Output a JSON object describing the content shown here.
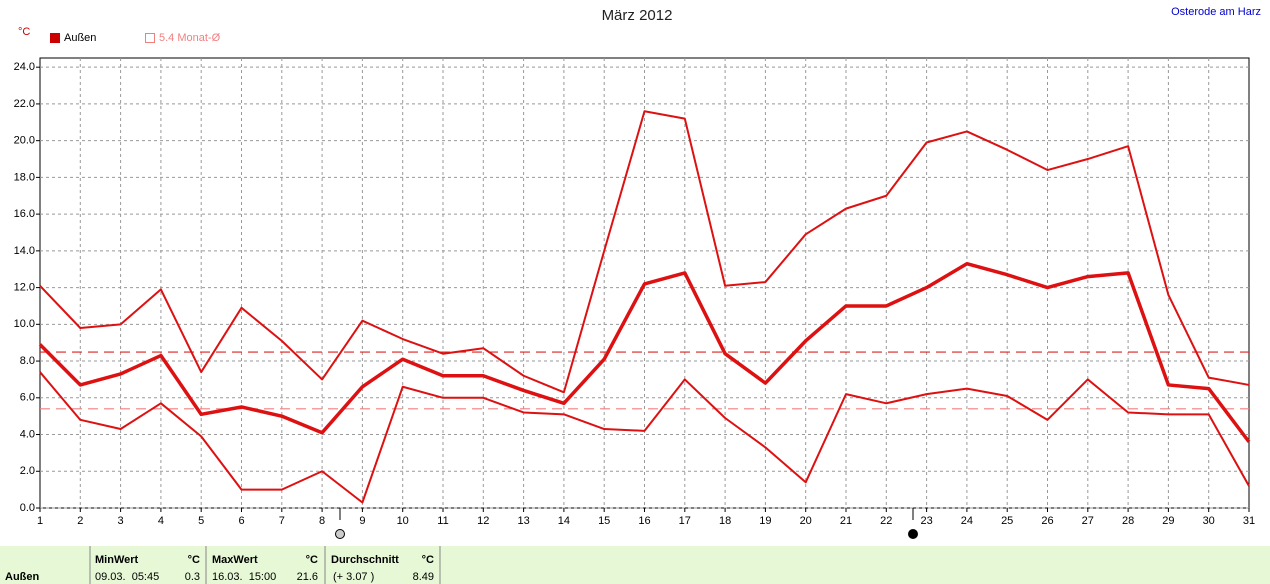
{
  "chart_data": {
    "type": "line",
    "title": "März 2012",
    "location": "Osterode am Harz",
    "y_unit": "°C",
    "legend": {
      "label": "Außen",
      "color": "#cc0000"
    },
    "x": [
      1,
      2,
      3,
      4,
      5,
      6,
      7,
      8,
      9,
      10,
      11,
      12,
      13,
      14,
      15,
      16,
      17,
      18,
      19,
      20,
      21,
      22,
      23,
      24,
      25,
      26,
      27,
      28,
      29,
      30,
      31
    ],
    "xlim": [
      1,
      31
    ],
    "xticks": [
      1,
      2,
      3,
      4,
      5,
      6,
      7,
      8,
      9,
      10,
      11,
      12,
      13,
      14,
      15,
      16,
      17,
      18,
      19,
      20,
      21,
      22,
      23,
      24,
      25,
      26,
      27,
      28,
      29,
      30,
      31
    ],
    "ylim": [
      0,
      24.5
    ],
    "yticks": [
      {
        "value": 0,
        "label": "0.0"
      },
      {
        "value": 2,
        "label": "2.0"
      },
      {
        "value": 4,
        "label": "4.0"
      },
      {
        "value": 6,
        "label": "6.0"
      },
      {
        "value": 8,
        "label": "8.0"
      },
      {
        "value": 10,
        "label": "10.0"
      },
      {
        "value": 12,
        "label": "12.0"
      },
      {
        "value": 14,
        "label": "14.0"
      },
      {
        "value": 16,
        "label": "16.0"
      },
      {
        "value": 18,
        "label": "18.0"
      },
      {
        "value": 20,
        "label": "20.0"
      },
      {
        "value": 22,
        "label": "22.0"
      },
      {
        "value": 24,
        "label": "24.0"
      }
    ],
    "grid": true,
    "series": [
      {
        "color": "#dd1111",
        "width": 2,
        "values": [
          12.1,
          9.8,
          10.0,
          11.9,
          7.4,
          10.9,
          9.1,
          7.0,
          10.2,
          9.2,
          8.4,
          8.7,
          7.2,
          6.3,
          14.0,
          21.6,
          21.2,
          12.1,
          12.3,
          14.9,
          16.3,
          17.0,
          19.9,
          20.5,
          19.5,
          18.4,
          19.0,
          19.7,
          11.6,
          7.1,
          6.7
        ]
      },
      {
        "color": "#dd1111",
        "width": 3.5,
        "values": [
          8.9,
          6.7,
          7.3,
          8.3,
          5.1,
          5.5,
          5.0,
          4.1,
          6.6,
          8.1,
          7.2,
          7.2,
          6.4,
          5.7,
          8.1,
          12.2,
          12.8,
          8.4,
          6.8,
          9.1,
          11.0,
          11.0,
          12.0,
          13.3,
          12.7,
          12.0,
          12.6,
          12.8,
          6.7,
          6.5,
          3.6
        ]
      },
      {
        "color": "#dd1111",
        "width": 2,
        "values": [
          7.4,
          4.8,
          4.3,
          5.7,
          3.9,
          1.0,
          1.0,
          2.0,
          0.3,
          6.6,
          6.0,
          6.0,
          5.2,
          5.1,
          4.3,
          4.2,
          7.0,
          4.9,
          3.3,
          1.4,
          6.2,
          5.7,
          6.2,
          6.5,
          6.1,
          4.8,
          7.0,
          5.2,
          5.1,
          5.1,
          1.2
        ]
      }
    ],
    "reference_lines": [
      {
        "value": 8.49,
        "color": "#dd2222"
      },
      {
        "value": 5.4,
        "color": "#f08080",
        "label": "5.4 Monat-Ø"
      }
    ]
  },
  "table": {
    "row_label": "Außen",
    "columns": [
      {
        "header": "MinWert",
        "unit": "°C",
        "detail": "09.03.  05:45",
        "value": "0.3"
      },
      {
        "header": "MaxWert",
        "unit": "°C",
        "detail": "16.03.  15:00",
        "value": "21.6"
      },
      {
        "header": "Durchschnitt",
        "unit": "°C",
        "detail": "(+ 3.07 )",
        "value": "8.49"
      }
    ]
  }
}
